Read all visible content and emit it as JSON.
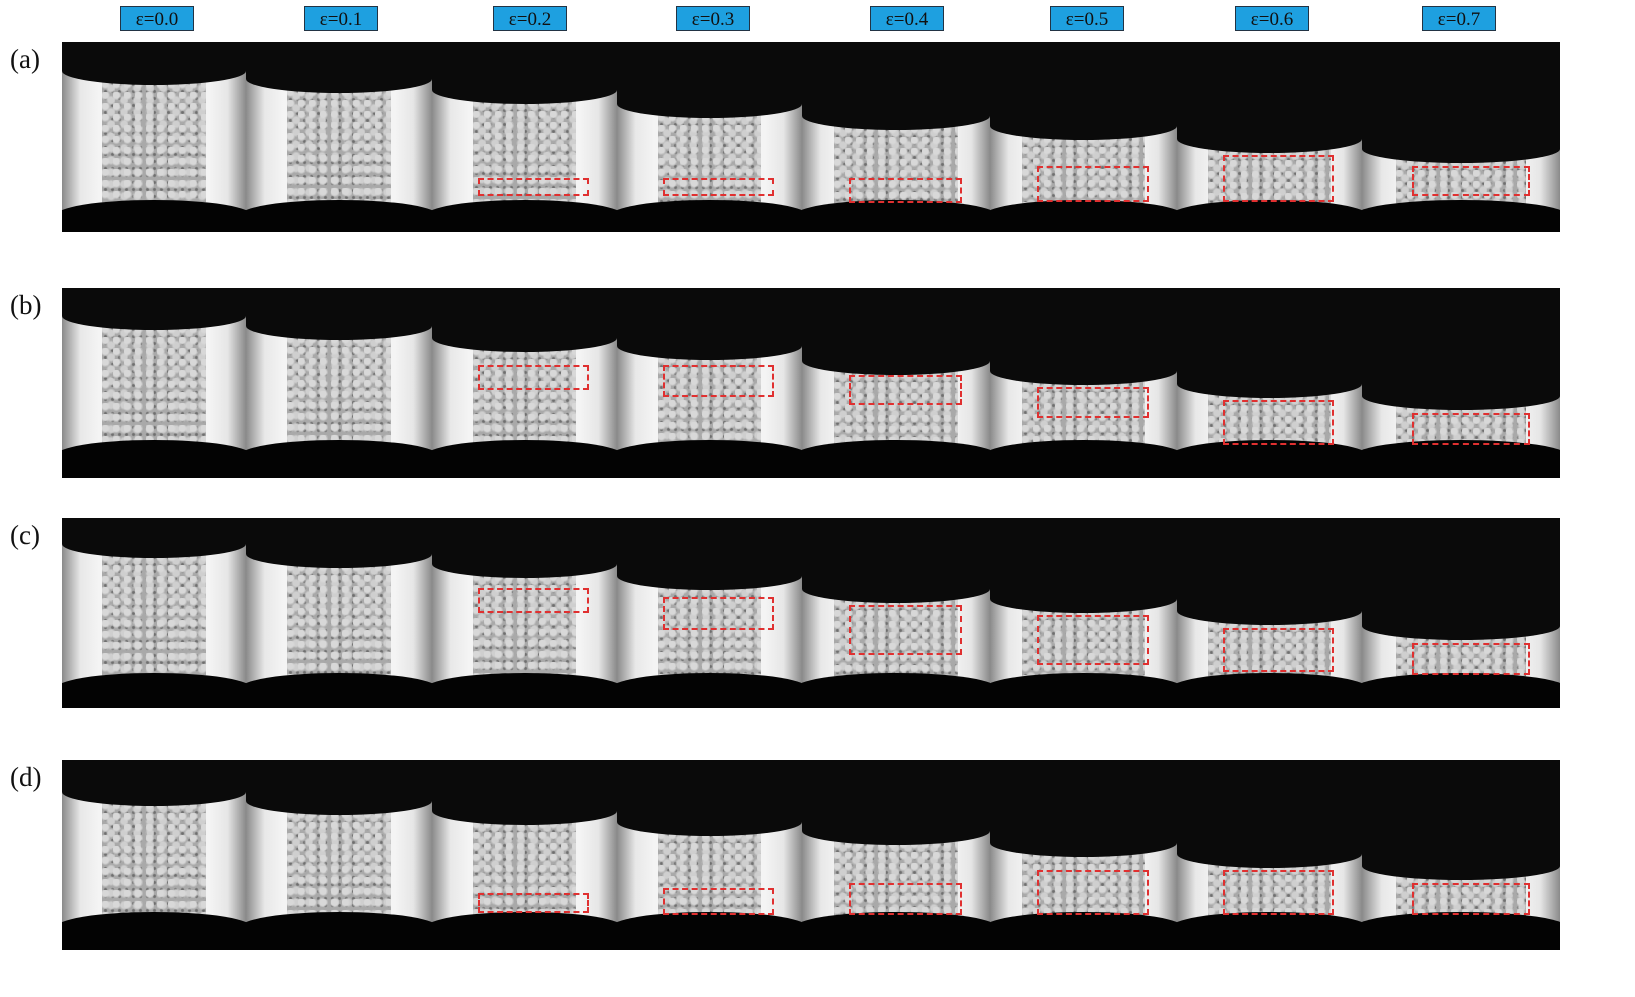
{
  "strain_labels": [
    "ε=0.0",
    "ε=0.1",
    "ε=0.2",
    "ε=0.3",
    "ε=0.4",
    "ε=0.5",
    "ε=0.6",
    "ε=0.7"
  ],
  "panel_labels": [
    "(a)",
    "(b)",
    "(c)",
    "(d)"
  ],
  "colors": {
    "header_bg": "#1ea0e0",
    "highlight_box": "#e03030"
  },
  "highlighted_strains": [
    "ε=0.2",
    "ε=0.3",
    "ε=0.4",
    "ε=0.5",
    "ε=0.6",
    "ε=0.7"
  ]
}
